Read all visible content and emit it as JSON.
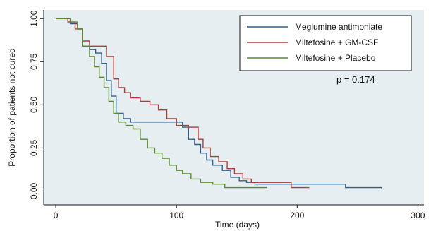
{
  "chart_data": {
    "type": "line",
    "step": true,
    "title": "",
    "xlabel": "Time (days)",
    "ylabel": "Proportion of patients not cured",
    "xlim": [
      -10,
      305
    ],
    "ylim": [
      -0.08,
      1.05
    ],
    "xticks": [
      0,
      100,
      200,
      300
    ],
    "xtick_labels": [
      "0",
      "100",
      "200",
      "300"
    ],
    "yticks": [
      0,
      0.25,
      0.5,
      0.75,
      1.0
    ],
    "ytick_labels": [
      "0.00",
      "0.25",
      "0.50",
      "0.75",
      "1.00"
    ],
    "grid": false,
    "legend_position": "top-right",
    "annotation": "p = 0.174",
    "colors": {
      "plot_background": "#e6eef2",
      "axis": "#111111"
    },
    "series": [
      {
        "name": "Meglumine antimoniate",
        "color": "#2e5f8a",
        "x": [
          0,
          12,
          18,
          22,
          28,
          33,
          38,
          42,
          46,
          50,
          56,
          62,
          70,
          90,
          105,
          110,
          115,
          120,
          125,
          130,
          138,
          145,
          152,
          158,
          165,
          240,
          270
        ],
        "y": [
          1.0,
          0.97,
          0.94,
          0.84,
          0.82,
          0.8,
          0.74,
          0.64,
          0.55,
          0.45,
          0.42,
          0.4,
          0.4,
          0.4,
          0.37,
          0.3,
          0.27,
          0.22,
          0.18,
          0.15,
          0.12,
          0.08,
          0.06,
          0.05,
          0.04,
          0.02,
          0.01
        ]
      },
      {
        "name": "Miltefosine + GM-CSF",
        "color": "#b03a3a",
        "x": [
          0,
          10,
          16,
          22,
          28,
          42,
          48,
          52,
          57,
          62,
          70,
          78,
          85,
          92,
          100,
          110,
          118,
          122,
          128,
          135,
          142,
          148,
          155,
          162,
          195,
          210
        ],
        "y": [
          1.0,
          0.98,
          0.94,
          0.87,
          0.84,
          0.78,
          0.65,
          0.6,
          0.57,
          0.54,
          0.52,
          0.5,
          0.47,
          0.42,
          0.38,
          0.37,
          0.3,
          0.25,
          0.2,
          0.17,
          0.13,
          0.1,
          0.07,
          0.05,
          0.02,
          0.02
        ]
      },
      {
        "name": "Miltefosine + Placebo",
        "color": "#5a8a2e",
        "x": [
          0,
          12,
          18,
          22,
          28,
          32,
          36,
          40,
          44,
          48,
          52,
          58,
          64,
          70,
          76,
          82,
          88,
          94,
          100,
          105,
          112,
          120,
          130,
          140,
          175
        ],
        "y": [
          1.0,
          0.98,
          0.94,
          0.84,
          0.78,
          0.72,
          0.66,
          0.6,
          0.52,
          0.45,
          0.4,
          0.38,
          0.36,
          0.3,
          0.25,
          0.22,
          0.19,
          0.15,
          0.12,
          0.1,
          0.07,
          0.05,
          0.04,
          0.02,
          0.02
        ]
      }
    ]
  }
}
